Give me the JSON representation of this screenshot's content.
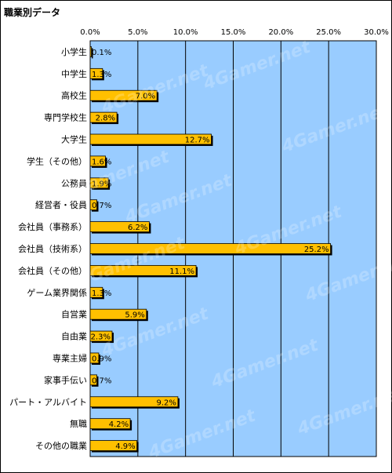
{
  "watermark": {
    "text": "4Gamer.net"
  },
  "chart_data": {
    "type": "bar",
    "orientation": "horizontal",
    "title": "職業別データ",
    "categories": [
      "小学生",
      "中学生",
      "高校生",
      "専門学校生",
      "大学生",
      "学生（その他）",
      "公務員",
      "経営者・役員",
      "会社員（事務系）",
      "会社員（技術系）",
      "会社員（その他）",
      "ゲーム業界関係",
      "自営業",
      "自由業",
      "専業主婦",
      "家事手伝い",
      "パート・アルバイト",
      "無職",
      "その他の職業"
    ],
    "values": [
      0.1,
      1.3,
      7.0,
      2.8,
      12.7,
      1.6,
      1.9,
      0.7,
      6.2,
      25.2,
      11.1,
      1.3,
      5.9,
      2.3,
      0.9,
      0.7,
      9.2,
      4.2,
      4.9
    ],
    "value_labels": [
      "0.1%",
      "1.3%",
      "7.0%",
      "2.8%",
      "12.7%",
      "1.6%",
      "1.9%",
      "0.7%",
      "6.2%",
      "25.2%",
      "11.1%",
      "1.3%",
      "5.9%",
      "2.3%",
      "0.9%",
      "0.7%",
      "9.2%",
      "4.2%",
      "4.9%"
    ],
    "x_ticks": [
      "0.0%",
      "5.0%",
      "10.0%",
      "15.0%",
      "20.0%",
      "25.0%",
      "30.0%"
    ],
    "xlim": [
      0,
      30
    ],
    "xlabel": "",
    "ylabel": "",
    "grid": true,
    "legend": "none",
    "colors": {
      "bar": "#ffc000",
      "bar_shadow": "#000000",
      "plot_background": "#99ccff",
      "gridline": "#000000"
    }
  }
}
